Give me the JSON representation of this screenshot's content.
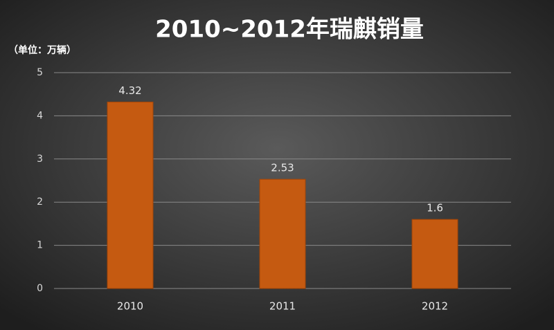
{
  "chart_data": {
    "type": "bar",
    "title": "2010~2012年瑞麒销量",
    "y_label": "（单位：万辆）",
    "categories": [
      "2010",
      "2011",
      "2012"
    ],
    "values": [
      4.32,
      2.53,
      1.6
    ],
    "color": "#c55a11",
    "ylim": [
      0,
      5
    ],
    "yticks": [
      0,
      1,
      2,
      3,
      4,
      5
    ],
    "grid": true
  }
}
